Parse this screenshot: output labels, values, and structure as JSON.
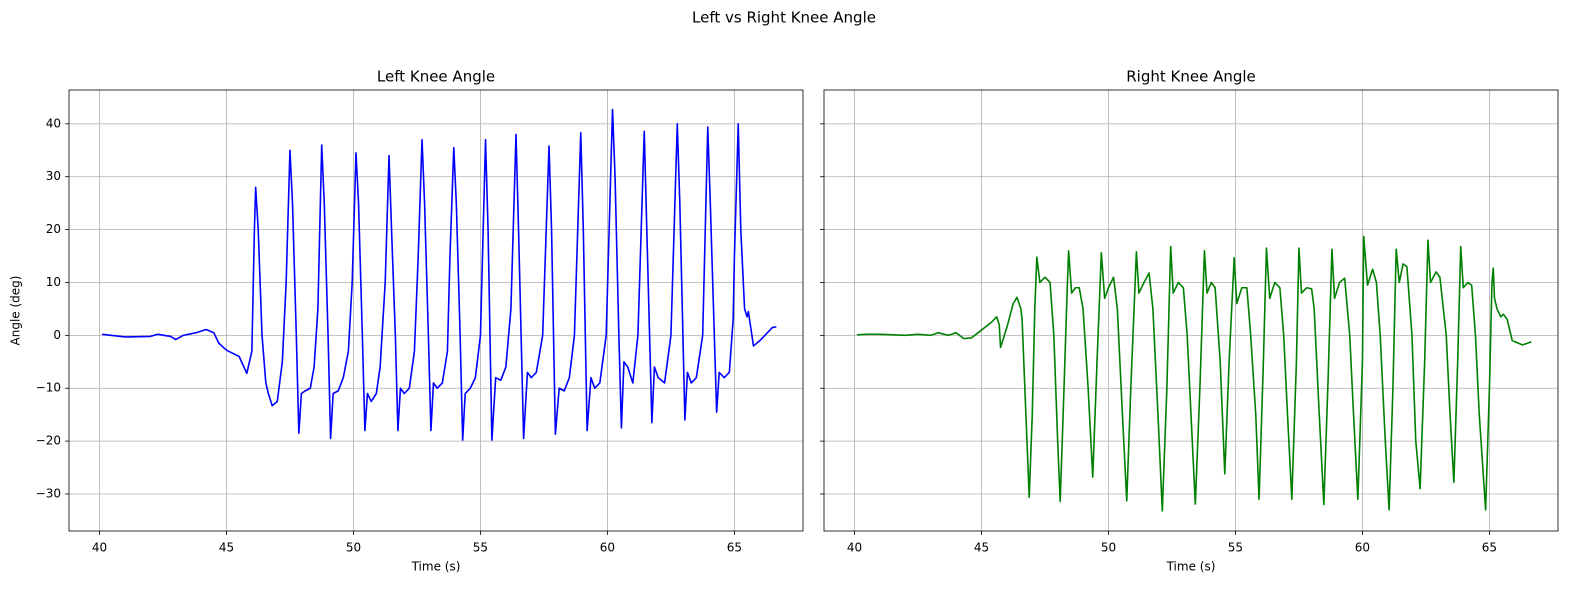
{
  "title": "Left vs Right Knee Angle",
  "chart_data": [
    {
      "type": "line",
      "title": "Left Knee Angle",
      "xlabel": "Time (s)",
      "ylabel": "Angle (deg)",
      "xlim": [
        38.8,
        67.7
      ],
      "ylim": [
        -37,
        46.4
      ],
      "xticks": [
        40,
        45,
        50,
        55,
        60,
        65
      ],
      "yticks": [
        {
          "value": -30,
          "label": "−30"
        },
        {
          "value": -20,
          "label": "−20"
        },
        {
          "value": -10,
          "label": "−10"
        },
        0,
        10,
        20,
        30,
        40
      ],
      "grid": true,
      "x": [
        40.1,
        41,
        42,
        42.3,
        42.8,
        43,
        43.3,
        43.8,
        44.2,
        44.5,
        44.7,
        45,
        45.5,
        45.8,
        46,
        46.1,
        46.15,
        46.25,
        46.4,
        46.55,
        46.65,
        46.8,
        47.0,
        47.2,
        47.35,
        47.5,
        47.6,
        47.75,
        47.85,
        47.95,
        48.1,
        48.3,
        48.45,
        48.6,
        48.75,
        48.85,
        49.0,
        49.1,
        49.2,
        49.4,
        49.6,
        49.8,
        49.95,
        50.1,
        50.2,
        50.35,
        50.45,
        50.55,
        50.7,
        50.9,
        51.05,
        51.25,
        51.4,
        51.5,
        51.65,
        51.75,
        51.85,
        52.0,
        52.2,
        52.4,
        52.55,
        52.7,
        52.8,
        52.95,
        53.05,
        53.15,
        53.3,
        53.5,
        53.7,
        53.8,
        53.95,
        54.05,
        54.2,
        54.3,
        54.4,
        54.6,
        54.8,
        55.0,
        55.2,
        55.3,
        55.45,
        55.6,
        55.8,
        56.0,
        56.2,
        56.4,
        56.5,
        56.7,
        56.85,
        57.0,
        57.2,
        57.45,
        57.7,
        57.8,
        57.95,
        58.1,
        58.3,
        58.5,
        58.7,
        58.95,
        59.05,
        59.2,
        59.35,
        59.5,
        59.7,
        59.95,
        60.2,
        60.3,
        60.45,
        60.55,
        60.65,
        60.8,
        61.0,
        61.2,
        61.45,
        61.55,
        61.75,
        61.85,
        62.0,
        62.25,
        62.5,
        62.75,
        62.85,
        63.05,
        63.15,
        63.3,
        63.5,
        63.75,
        63.95,
        64.05,
        64.3,
        64.4,
        64.6,
        64.8,
        64.95,
        65.0,
        65.15,
        65.25,
        65.4,
        65.5,
        65.55,
        65.75,
        66.0,
        66.3,
        66.5,
        66.65
      ],
      "series": [
        {
          "color": "#0000ff",
          "values": [
            0.2,
            -0.3,
            -0.2,
            0.2,
            -0.2,
            -0.8,
            0,
            0.5,
            1.1,
            0.5,
            -1.5,
            -2.8,
            -4,
            -7.2,
            -3,
            20,
            28,
            20,
            0,
            -9,
            -11,
            -13.3,
            -12.5,
            -5,
            10,
            35,
            25,
            0,
            -18.5,
            -11,
            -10.5,
            -10,
            -6,
            5,
            36,
            25,
            0,
            -19.5,
            -11,
            -10.5,
            -8,
            -3,
            10,
            34.5,
            25,
            0,
            -18,
            -11,
            -12.5,
            -11,
            -6,
            10,
            34,
            20,
            0,
            -18,
            -10,
            -11,
            -10,
            -3,
            15,
            37,
            25,
            0,
            -18,
            -9,
            -10,
            -9,
            -3,
            15,
            35.5,
            25,
            0,
            -19.8,
            -11,
            -10,
            -8,
            0,
            37,
            20,
            -19.8,
            -8,
            -8.5,
            -6,
            5,
            38,
            20,
            -19.5,
            -7,
            -8,
            -7,
            0,
            35.8,
            20,
            -18.7,
            -10,
            -10.5,
            -8,
            0,
            38.3,
            20,
            -18,
            -8,
            -10,
            -9,
            0,
            42.7,
            30,
            0,
            -17.5,
            -5,
            -6,
            -9,
            0,
            38.6,
            20,
            -16.5,
            -6,
            -8,
            -9,
            0,
            40,
            25,
            -16,
            -7,
            -9,
            -8,
            0,
            39.4,
            25,
            -14.5,
            -7,
            -8,
            -7,
            3,
            15,
            40,
            20,
            5,
            3.5,
            4.5,
            -2,
            -1,
            0.5,
            1.5,
            1.6
          ]
        }
      ]
    },
    {
      "type": "line",
      "title": "Right Knee Angle",
      "xlabel": "Time (s)",
      "sharey": true,
      "xlim": [
        38.8,
        67.7
      ],
      "ylim": [
        -37,
        46.4
      ],
      "xticks": [
        40,
        45,
        50,
        55,
        60,
        65
      ],
      "yticks": [
        -30,
        -20,
        -10,
        0,
        10,
        20,
        30,
        40
      ],
      "grid": true,
      "x": [
        40.1,
        40.5,
        41,
        42,
        42.5,
        43,
        43.3,
        43.7,
        44,
        44.3,
        44.6,
        45,
        45.4,
        45.6,
        45.7,
        45.75,
        46.0,
        46.25,
        46.4,
        46.55,
        46.6,
        46.75,
        46.88,
        47.0,
        47.1,
        47.18,
        47.3,
        47.5,
        47.7,
        47.85,
        48.0,
        48.1,
        48.25,
        48.35,
        48.43,
        48.55,
        48.7,
        48.85,
        49.0,
        49.2,
        49.38,
        49.55,
        49.72,
        49.85,
        50.0,
        50.2,
        50.35,
        50.55,
        50.72,
        50.88,
        51.1,
        51.2,
        51.4,
        51.6,
        51.75,
        51.95,
        52.12,
        52.3,
        52.45,
        52.55,
        52.75,
        52.95,
        53.1,
        53.25,
        53.42,
        53.6,
        53.78,
        53.88,
        54.05,
        54.2,
        54.4,
        54.58,
        54.75,
        54.95,
        55.05,
        55.25,
        55.45,
        55.6,
        55.8,
        55.93,
        56.1,
        56.22,
        56.35,
        56.55,
        56.75,
        56.9,
        57.05,
        57.22,
        57.4,
        57.5,
        57.6,
        57.8,
        58.0,
        58.1,
        58.3,
        58.48,
        58.65,
        58.8,
        58.9,
        59.1,
        59.3,
        59.5,
        59.65,
        59.82,
        60.0,
        60.05,
        60.2,
        60.4,
        60.55,
        60.7,
        60.9,
        61.05,
        61.2,
        61.33,
        61.45,
        61.6,
        61.75,
        61.95,
        62.1,
        62.27,
        62.45,
        62.58,
        62.68,
        62.9,
        63.05,
        63.3,
        63.45,
        63.6,
        63.75,
        63.87,
        63.97,
        64.15,
        64.3,
        64.45,
        64.6,
        64.85,
        65.0,
        65.1,
        65.15,
        65.2,
        65.3,
        65.45,
        65.55,
        65.7,
        65.9,
        66.1,
        66.3,
        66.5,
        66.65
      ],
      "series": [
        {
          "color": "#008000",
          "values": [
            0.1,
            0.2,
            0.2,
            0,
            0.2,
            0,
            0.5,
            0,
            0.5,
            -0.6,
            -0.5,
            1,
            2.5,
            3.5,
            2,
            -2.3,
            1.5,
            6,
            7.2,
            5,
            3,
            -15,
            -30.6,
            -15,
            5,
            14.8,
            10,
            11,
            10,
            0,
            -20,
            -31.4,
            -10,
            5,
            16,
            8,
            9,
            9,
            5,
            -10,
            -26.8,
            -5,
            15.6,
            7,
            9,
            11,
            5,
            -15,
            -31.3,
            -10,
            15.8,
            8,
            10,
            11.8,
            5,
            -15,
            -33.2,
            -10,
            16.8,
            8,
            10,
            9,
            0,
            -15,
            -31.9,
            -10,
            16,
            8,
            10,
            9,
            -5,
            -26.2,
            -5,
            14.7,
            6,
            9,
            9,
            0,
            -15,
            -31,
            -5,
            16.5,
            7,
            10,
            9,
            0,
            -15,
            -31,
            -5,
            16.5,
            8,
            9,
            8.8,
            5,
            -15,
            -32,
            -8,
            16.3,
            7,
            10,
            10.8,
            0,
            -15,
            -31,
            -5,
            18.7,
            9.5,
            12.5,
            10,
            0,
            -20,
            -33,
            -10,
            16.3,
            10,
            13.5,
            13,
            0,
            -20,
            -29,
            -5,
            18,
            10,
            12,
            11,
            0,
            -15,
            -27.8,
            -5,
            16.8,
            9,
            10,
            9.5,
            0,
            -15,
            -33,
            -10,
            10,
            12.7,
            7,
            5,
            3.5,
            4,
            3,
            -1,
            -1.4,
            -1.8,
            -1.5,
            -1.2
          ]
        }
      ]
    }
  ]
}
